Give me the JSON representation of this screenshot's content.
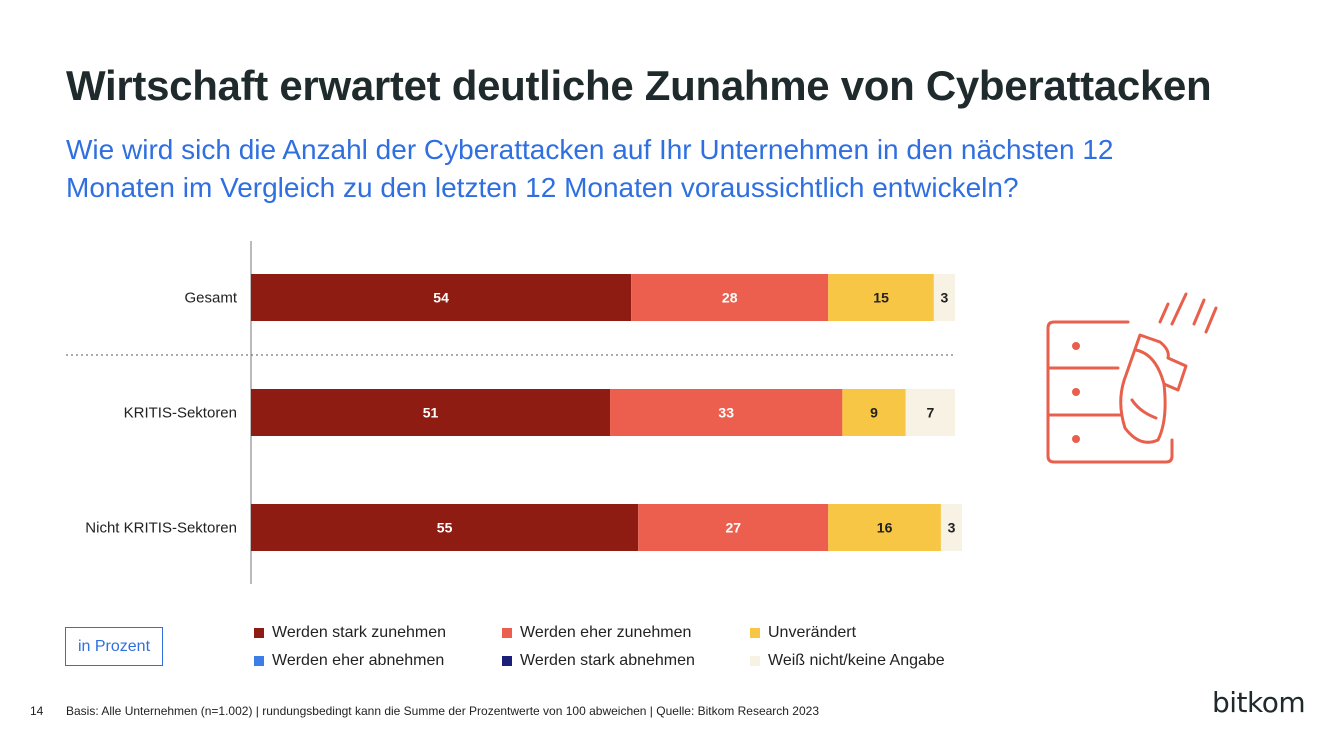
{
  "title": "Wirtschaft erwartet deutliche Zunahme von Cyberattacken",
  "subtitle": "Wie wird sich die Anzahl der Cyberattacken auf Ihr Unternehmen in den nächsten 12 Monaten im Vergleich zu den letzten 12 Monaten voraussichtlich entwickeln?",
  "chart_data": {
    "type": "bar",
    "orientation": "horizontal",
    "stacked": true,
    "categories": [
      "Gesamt",
      "KRITIS-Sektoren",
      "Nicht KRITIS-Sektoren"
    ],
    "series": [
      {
        "name": "Werden stark zunehmen",
        "color": "#8e1c13",
        "label_color": "#ffffff",
        "values": [
          54,
          51,
          55
        ]
      },
      {
        "name": "Werden eher zunehmen",
        "color": "#ec5f4e",
        "label_color": "#ffffff",
        "values": [
          28,
          33,
          27
        ]
      },
      {
        "name": "Unverändert",
        "color": "#f6c644",
        "label_color": "#222222",
        "values": [
          15,
          9,
          16
        ]
      },
      {
        "name": "Werden eher abnehmen",
        "color": "#3d7de8",
        "label_color": "#ffffff",
        "values": [
          0,
          0,
          0
        ]
      },
      {
        "name": "Werden stark abnehmen",
        "color": "#1a1f7a",
        "label_color": "#ffffff",
        "values": [
          0,
          0,
          0
        ]
      },
      {
        "name": "Weiß nicht/keine Angabe",
        "color": "#f7f2e3",
        "label_color": "#222222",
        "values": [
          3,
          7,
          3
        ]
      }
    ],
    "xlim": [
      0,
      100
    ],
    "grid": false,
    "legend_position": "bottom",
    "unit": "in Prozent"
  },
  "footer": {
    "page_number": "14",
    "note": "Basis: Alle Unternehmen (n=1.002) | rundungsbedingt kann die Summe der Prozentwerte von 100 abweichen | Quelle: Bitkom Research 2023"
  },
  "logo_text": "bitkom",
  "illustration_icon": "server-attack-icon"
}
